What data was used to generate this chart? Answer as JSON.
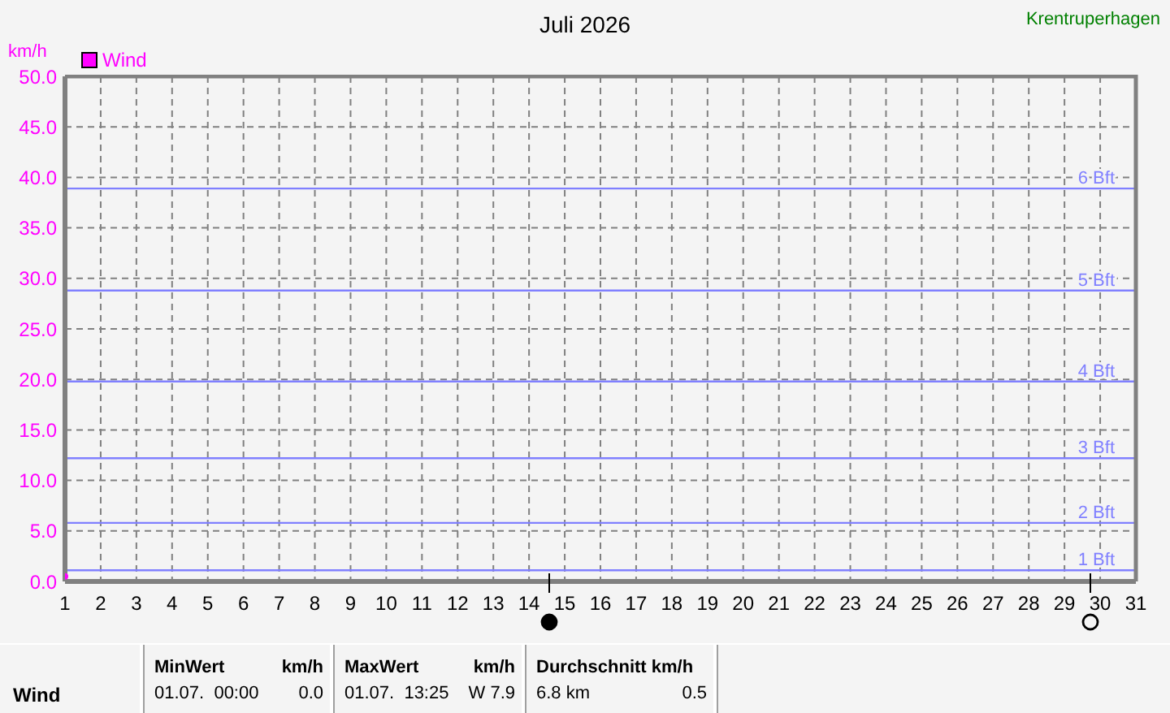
{
  "chart_data": {
    "type": "line",
    "title": "Juli 2026",
    "subtitle": "Krentruperhagen",
    "ylabel": "km/h",
    "series": [
      {
        "name": "Wind",
        "color": "#ff00ff",
        "x": [
          1
        ],
        "values": [
          0.5
        ],
        "marker": "circle"
      }
    ],
    "xlim": [
      1,
      31
    ],
    "xticks": [
      1,
      2,
      3,
      4,
      5,
      6,
      7,
      8,
      9,
      10,
      11,
      12,
      13,
      14,
      15,
      16,
      17,
      18,
      19,
      20,
      21,
      22,
      23,
      24,
      25,
      26,
      27,
      28,
      29,
      30,
      31
    ],
    "ylim": [
      0,
      50
    ],
    "yticks": [
      {
        "value": 0,
        "label": "0.0"
      },
      {
        "value": 5,
        "label": "5.0"
      },
      {
        "value": 10,
        "label": "10.0"
      },
      {
        "value": 15,
        "label": "15.0"
      },
      {
        "value": 20,
        "label": "20.0"
      },
      {
        "value": 25,
        "label": "25.0"
      },
      {
        "value": 30,
        "label": "30.0"
      },
      {
        "value": 35,
        "label": "35.0"
      },
      {
        "value": 40,
        "label": "40.0"
      },
      {
        "value": 45,
        "label": "45.0"
      },
      {
        "value": 50,
        "label": "50.0"
      }
    ],
    "grid": true,
    "legend": "top left",
    "ref_lines": [
      {
        "axis": "y",
        "value": 1.1,
        "label": "1 Bft",
        "color": "#8080ff"
      },
      {
        "axis": "y",
        "value": 5.8,
        "label": "2 Bft",
        "color": "#8080ff"
      },
      {
        "axis": "y",
        "value": 12.2,
        "label": "3 Bft",
        "color": "#8080ff"
      },
      {
        "axis": "y",
        "value": 19.8,
        "label": "4 Bft",
        "color": "#8080ff"
      },
      {
        "axis": "y",
        "value": 28.8,
        "label": "5 Bft",
        "color": "#8080ff"
      },
      {
        "axis": "y",
        "value": 38.9,
        "label": "6 Bft",
        "color": "#8080ff"
      }
    ],
    "annotations": [
      "Wind",
      "MinWert",
      "km/h",
      "01.07.  00:00",
      "0.0",
      "MaxWert",
      "km/h",
      "01.07.  13:25",
      "W 7.9",
      "Durchschnitt km/h",
      "6.8 km",
      "0.5"
    ]
  }
}
